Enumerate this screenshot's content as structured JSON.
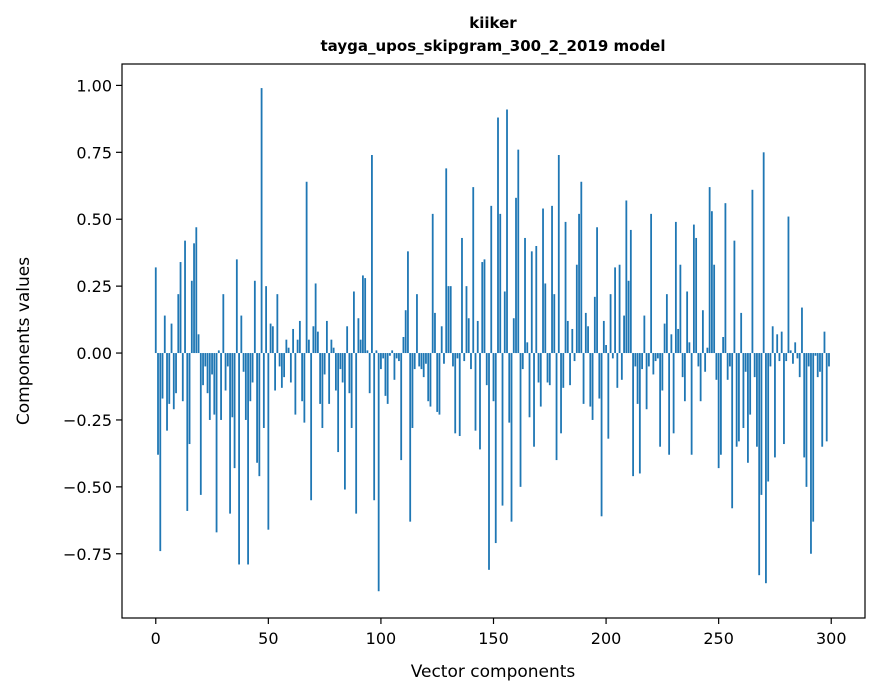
{
  "chart_data": {
    "type": "bar",
    "title": "kiiker",
    "subtitle": "tayga_upos_skipgram_300_2_2019 model",
    "xlabel": "Vector components",
    "ylabel": "Components values",
    "xlim": [
      -15,
      315
    ],
    "ylim": [
      -0.99,
      1.08
    ],
    "x_ticks": [
      0,
      50,
      100,
      150,
      200,
      250,
      300
    ],
    "y_ticks": [
      -0.75,
      -0.5,
      -0.25,
      0.0,
      0.25,
      0.5,
      0.75,
      1.0
    ],
    "x_tick_labels": [
      "0",
      "50",
      "100",
      "150",
      "200",
      "250",
      "300"
    ],
    "y_tick_labels": [
      "−0.75",
      "−0.50",
      "−0.25",
      "0.00",
      "0.25",
      "0.50",
      "0.75",
      "1.00"
    ],
    "bar_color": "#1f77b4",
    "grid": false,
    "values": [
      0.32,
      -0.38,
      -0.74,
      -0.17,
      0.14,
      -0.29,
      -0.19,
      0.11,
      -0.21,
      -0.15,
      0.22,
      0.34,
      -0.18,
      0.42,
      -0.59,
      -0.34,
      0.27,
      0.41,
      0.47,
      0.07,
      -0.53,
      -0.12,
      -0.05,
      -0.15,
      -0.25,
      -0.08,
      -0.23,
      -0.67,
      0.01,
      -0.25,
      0.22,
      -0.14,
      -0.05,
      -0.6,
      -0.24,
      -0.43,
      0.35,
      -0.79,
      0.14,
      -0.07,
      -0.25,
      -0.79,
      -0.18,
      -0.11,
      0.27,
      -0.41,
      -0.46,
      0.99,
      -0.28,
      0.25,
      -0.66,
      0.11,
      0.1,
      -0.14,
      0.22,
      -0.05,
      -0.13,
      -0.09,
      0.05,
      0.02,
      -0.11,
      0.09,
      -0.23,
      0.05,
      0.12,
      -0.18,
      -0.26,
      0.64,
      0.05,
      -0.55,
      0.1,
      0.26,
      0.08,
      -0.19,
      -0.28,
      -0.08,
      0.12,
      -0.19,
      0.05,
      0.02,
      -0.14,
      -0.37,
      -0.06,
      -0.11,
      -0.51,
      0.1,
      -0.15,
      -0.28,
      0.23,
      -0.6,
      0.13,
      0.05,
      0.29,
      0.28,
      0.01,
      -0.15,
      0.74,
      -0.55,
      0.01,
      -0.89,
      -0.06,
      -0.02,
      -0.16,
      -0.19,
      -0.01,
      0.01,
      -0.1,
      -0.02,
      -0.03,
      -0.4,
      0.06,
      0.16,
      0.38,
      -0.63,
      -0.28,
      -0.06,
      0.22,
      -0.05,
      -0.06,
      -0.09,
      -0.04,
      -0.18,
      -0.2,
      0.52,
      0.15,
      -0.22,
      -0.23,
      0.1,
      -0.04,
      0.69,
      0.25,
      0.25,
      -0.05,
      -0.3,
      -0.02,
      -0.31,
      0.43,
      -0.03,
      0.25,
      0.13,
      -0.06,
      0.62,
      -0.29,
      0.12,
      -0.36,
      0.34,
      0.35,
      -0.12,
      -0.81,
      0.55,
      -0.18,
      -0.71,
      0.88,
      0.52,
      -0.57,
      0.23,
      0.91,
      -0.26,
      -0.63,
      0.13,
      0.58,
      0.76,
      -0.5,
      -0.06,
      0.43,
      0.04,
      -0.24,
      0.38,
      -0.35,
      0.4,
      -0.11,
      -0.2,
      0.54,
      0.26,
      -0.11,
      -0.12,
      0.55,
      0.22,
      -0.4,
      0.74,
      -0.3,
      -0.13,
      0.49,
      0.12,
      -0.12,
      0.09,
      -0.03,
      0.33,
      0.52,
      0.64,
      -0.19,
      0.15,
      0.1,
      -0.2,
      -0.25,
      0.21,
      0.47,
      -0.17,
      -0.61,
      0.12,
      0.03,
      -0.32,
      0.22,
      -0.02,
      0.32,
      -0.13,
      0.33,
      -0.1,
      0.14,
      0.57,
      0.27,
      0.46,
      -0.46,
      -0.05,
      -0.19,
      -0.45,
      -0.06,
      0.14,
      -0.21,
      -0.05,
      0.52,
      -0.08,
      -0.03,
      -0.02,
      -0.35,
      -0.14,
      0.11,
      0.22,
      -0.38,
      0.07,
      -0.3,
      0.49,
      0.09,
      0.33,
      -0.09,
      -0.18,
      0.23,
      0.04,
      -0.38,
      0.48,
      0.43,
      -0.05,
      -0.18,
      0.16,
      -0.07,
      0.02,
      0.62,
      0.53,
      0.33,
      -0.1,
      -0.43,
      -0.38,
      0.06,
      0.56,
      -0.1,
      -0.05,
      -0.58,
      0.42,
      -0.35,
      -0.33,
      0.15,
      -0.28,
      -0.07,
      -0.41,
      -0.23,
      0.61,
      -0.09,
      -0.35,
      -0.83,
      -0.53,
      0.75,
      -0.86,
      -0.48,
      -0.05,
      0.1,
      -0.39,
      0.07,
      -0.03,
      0.08,
      -0.34,
      -0.03,
      0.51,
      0.01,
      -0.04,
      0.04,
      -0.02,
      -0.09,
      0.17,
      -0.39,
      -0.5,
      -0.05,
      -0.75,
      -0.63,
      -0.01,
      -0.09,
      -0.07,
      -0.35,
      0.08,
      -0.33,
      -0.05
    ]
  }
}
